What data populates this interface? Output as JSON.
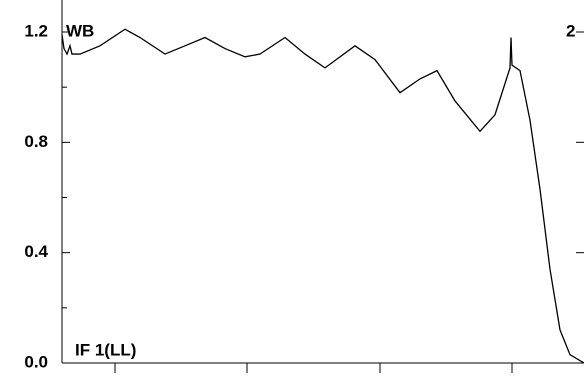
{
  "chart_data": {
    "type": "line",
    "labels": {
      "top_left": "WB",
      "top_right": "2",
      "bottom_left": "IF 1(LL)"
    },
    "x": [
      0,
      2,
      5,
      8,
      10,
      18,
      38,
      63,
      78,
      103,
      123,
      143,
      163,
      183,
      198,
      223,
      243,
      263,
      293,
      313,
      338,
      358,
      375,
      393,
      418,
      433,
      448,
      449,
      450,
      458,
      468,
      478,
      488,
      498,
      508,
      522
    ],
    "series": [
      {
        "color": "#000000",
        "values": [
          1.19,
          1.14,
          1.12,
          1.15,
          1.12,
          1.12,
          1.15,
          1.21,
          1.18,
          1.12,
          1.15,
          1.18,
          1.14,
          1.11,
          1.12,
          1.18,
          1.12,
          1.07,
          1.15,
          1.1,
          0.98,
          1.03,
          1.06,
          0.95,
          0.84,
          0.9,
          1.07,
          1.18,
          1.08,
          1.06,
          0.88,
          0.63,
          0.34,
          0.12,
          0.03,
          0.0
        ]
      }
    ],
    "xlim": [
      0,
      522
    ],
    "xticks": [
      53,
      185,
      318,
      450
    ],
    "ylim": [
      0,
      1.2
    ],
    "yticks": [
      {
        "value": 0,
        "label": "0.0"
      },
      0.4,
      0.8,
      1.2
    ],
    "yminorticks": [
      0.2,
      0.6,
      1.0
    ]
  }
}
